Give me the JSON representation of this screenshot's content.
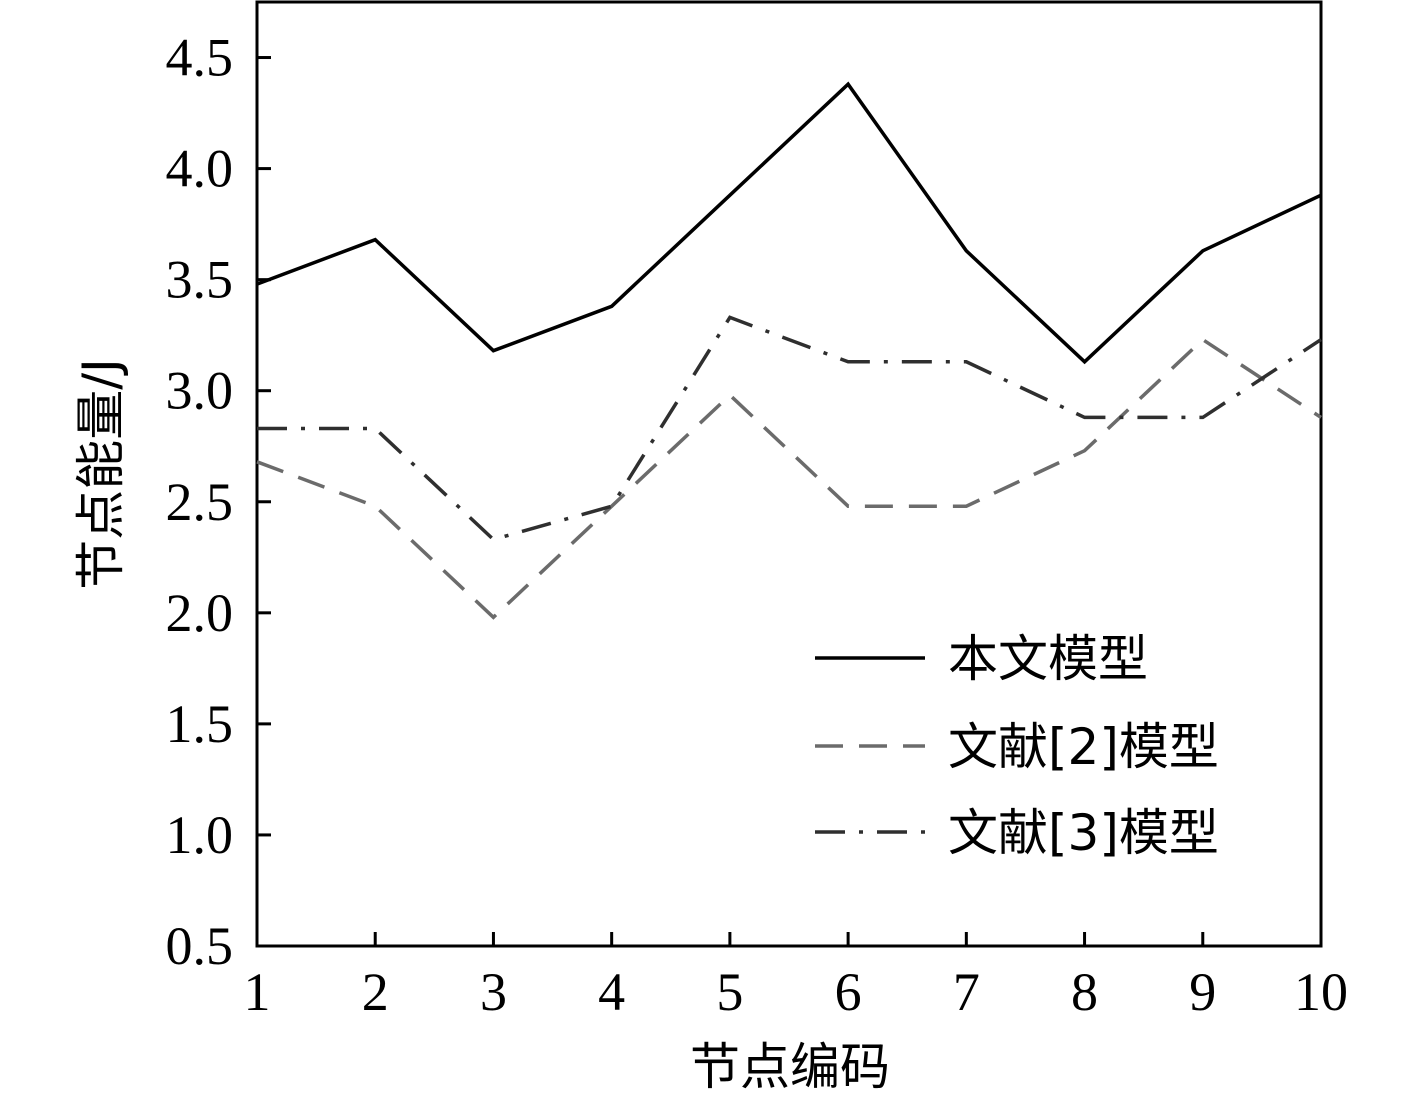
{
  "chart_data": {
    "type": "line",
    "xlabel": "节点编码",
    "ylabel": "节点能量/J",
    "x": [
      1,
      2,
      3,
      4,
      5,
      6,
      7,
      8,
      9,
      10
    ],
    "xlim": [
      1,
      10
    ],
    "ylim": [
      0.5,
      4.75
    ],
    "yticks": [
      0.5,
      1.0,
      1.5,
      2.0,
      2.5,
      3.0,
      3.5,
      4.0,
      4.5
    ],
    "ytick_labels": [
      "0.5",
      "1.0",
      "1.5",
      "2.0",
      "2.5",
      "3.0",
      "3.5",
      "4.0",
      "4.5"
    ],
    "xtick_labels": [
      "1",
      "2",
      "3",
      "4",
      "5",
      "6",
      "7",
      "8",
      "9",
      "10"
    ],
    "grid": false,
    "legend_position": "bottom-right",
    "series": [
      {
        "name": "本文模型",
        "values": [
          3.48,
          3.68,
          3.18,
          3.38,
          3.88,
          4.38,
          3.63,
          3.13,
          3.63,
          3.88
        ],
        "color": "#000000",
        "style": "solid"
      },
      {
        "name": "文献[2]模型",
        "values": [
          2.68,
          2.48,
          1.98,
          2.48,
          2.98,
          2.48,
          2.48,
          2.73,
          3.23,
          2.88
        ],
        "color": "#6b6b6b",
        "style": "dashed"
      },
      {
        "name": "文献[3]模型",
        "values": [
          2.83,
          2.83,
          2.33,
          2.48,
          3.33,
          3.13,
          3.13,
          2.88,
          2.88,
          3.23
        ],
        "color": "#2f2f2f",
        "style": "dashdot"
      }
    ]
  }
}
